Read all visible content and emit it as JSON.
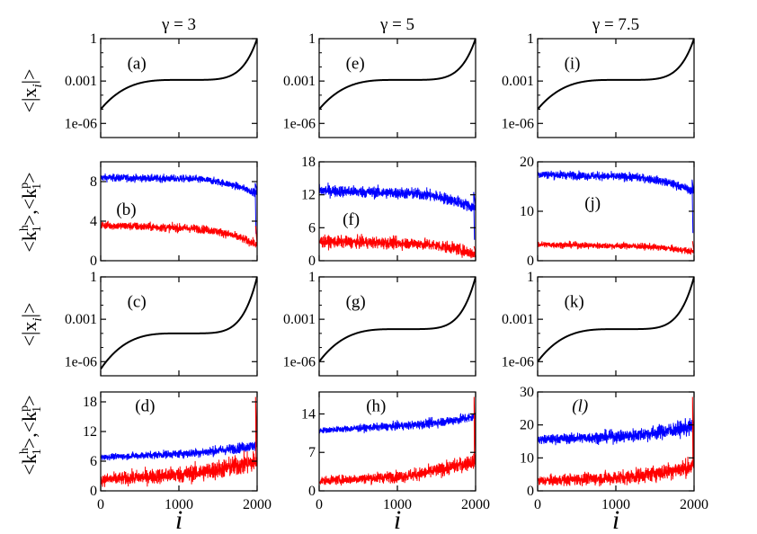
{
  "chart_data": {
    "type": "line",
    "column_titles": [
      "γ = 3",
      "γ = 5",
      "γ = 7.5"
    ],
    "xlabel": "i",
    "ylabel_rows": {
      "abs_x": "<|x_i|>",
      "degree": "<k_1^h>,<k_1^p>"
    },
    "ylabel_parts": {
      "abs_main": "<|x",
      "abs_sub": "i",
      "abs_end": "|>",
      "deg_open": "<k",
      "deg_h": "h",
      "deg_1a": "1",
      "deg_mid": ">,<k",
      "deg_p": "p",
      "deg_1b": "1",
      "deg_close": ">"
    },
    "x_range": [
      0,
      2000
    ],
    "x_ticks": [
      0,
      1000,
      2000
    ],
    "x_tick_labels": [
      "0",
      "1000",
      "2000"
    ],
    "series_colors": {
      "abs_x": "#000000",
      "k_h": "#0000ff",
      "k_p": "#ff0000"
    },
    "panels": [
      {
        "id": "a",
        "label": "(a)",
        "row": 0,
        "col": 0,
        "kind": "abs",
        "yscale": "log",
        "ylim": [
          1e-07,
          1
        ],
        "yticks": [
          1,
          0.001,
          1e-06
        ],
        "ytick_labels": [
          "1",
          "0.001",
          "1e-06"
        ],
        "curve": {
          "start": 1e-05,
          "plateau": 0.0012,
          "end": 1
        }
      },
      {
        "id": "e",
        "label": "(e)",
        "row": 0,
        "col": 1,
        "kind": "abs",
        "yscale": "log",
        "ylim": [
          1e-07,
          1
        ],
        "yticks": [
          1,
          0.001,
          1e-06
        ],
        "ytick_labels": [
          "1",
          "0.001",
          "1e-06"
        ],
        "curve": {
          "start": 1e-05,
          "plateau": 0.0012,
          "end": 1
        }
      },
      {
        "id": "i",
        "label": "(i)",
        "row": 0,
        "col": 2,
        "kind": "abs",
        "yscale": "log",
        "ylim": [
          1e-07,
          1
        ],
        "yticks": [
          1,
          0.001,
          1e-06
        ],
        "ytick_labels": [
          "1",
          "0.001",
          "1e-06"
        ],
        "curve": {
          "start": 1e-05,
          "plateau": 0.0012,
          "end": 1
        }
      },
      {
        "id": "b",
        "label": "(b)",
        "row": 1,
        "col": 0,
        "kind": "deg",
        "ylim": [
          0,
          10
        ],
        "yticks": [
          0,
          4,
          8
        ],
        "ytick_labels": [
          "0",
          "4",
          "8"
        ],
        "blue": {
          "start": 8.4,
          "mid": 8.3,
          "end": 6.8,
          "noise": 0.35
        },
        "red": {
          "start": 3.6,
          "mid": 3.3,
          "end": 1.6,
          "noise": 0.4
        },
        "shape": "decline"
      },
      {
        "id": "f",
        "label": "(f)",
        "row": 1,
        "col": 1,
        "kind": "deg",
        "ylim": [
          0,
          18
        ],
        "yticks": [
          0,
          6,
          12,
          18
        ],
        "ytick_labels": [
          "0",
          "6",
          "12",
          "18"
        ],
        "blue": {
          "start": 12.8,
          "mid": 12.3,
          "end": 9.5,
          "noise": 1.0
        },
        "red": {
          "start": 3.5,
          "mid": 3.2,
          "end": 1.2,
          "noise": 1.0
        },
        "shape": "decline"
      },
      {
        "id": "j",
        "label": "(j)",
        "row": 1,
        "col": 2,
        "kind": "deg",
        "ylim": [
          0,
          20
        ],
        "yticks": [
          0,
          10,
          20
        ],
        "ytick_labels": [
          "0",
          "10",
          "20"
        ],
        "blue": {
          "start": 17.5,
          "mid": 17.0,
          "end": 14.0,
          "noise": 0.8
        },
        "red": {
          "start": 3.3,
          "mid": 3.0,
          "end": 1.8,
          "noise": 0.6
        },
        "shape": "decline"
      },
      {
        "id": "c",
        "label": "(c)",
        "row": 2,
        "col": 0,
        "kind": "abs",
        "yscale": "log",
        "ylim": [
          1e-07,
          1
        ],
        "yticks": [
          1,
          0.001,
          1e-06
        ],
        "ytick_labels": [
          "1",
          "0.001",
          "1e-06"
        ],
        "curve": {
          "start": 3e-07,
          "plateau": 0.0001,
          "end": 1
        }
      },
      {
        "id": "g",
        "label": "(g)",
        "row": 2,
        "col": 1,
        "kind": "abs",
        "yscale": "log",
        "ylim": [
          1e-07,
          1
        ],
        "yticks": [
          1,
          0.001,
          1e-06
        ],
        "ytick_labels": [
          "1",
          "0.001",
          "1e-06"
        ],
        "curve": {
          "start": 1e-06,
          "plateau": 0.0002,
          "end": 1
        }
      },
      {
        "id": "k",
        "label": "(k)",
        "row": 2,
        "col": 2,
        "kind": "abs",
        "yscale": "log",
        "ylim": [
          1e-07,
          1
        ],
        "yticks": [
          1,
          0.001,
          1e-06
        ],
        "ytick_labels": [
          "1",
          "0.001",
          "1e-06"
        ],
        "curve": {
          "start": 1e-06,
          "plateau": 0.0002,
          "end": 1
        }
      },
      {
        "id": "d",
        "label": "(d)",
        "row": 3,
        "col": 0,
        "kind": "deg",
        "ylim": [
          0,
          20
        ],
        "yticks": [
          0,
          6,
          12,
          18
        ],
        "ytick_labels": [
          "0",
          "6",
          "12",
          "18"
        ],
        "blue": {
          "start": 6.8,
          "mid": 7.5,
          "end": 9.2,
          "noise": 0.8
        },
        "red": {
          "start": 2.2,
          "mid": 3.3,
          "end": 6.0,
          "noise": 1.6
        },
        "shape": "rise"
      },
      {
        "id": "h",
        "label": "(h)",
        "row": 3,
        "col": 1,
        "kind": "deg",
        "ylim": [
          0,
          18
        ],
        "yticks": [
          0,
          7,
          14
        ],
        "ytick_labels": [
          "0",
          "7",
          "14"
        ],
        "blue": {
          "start": 11.0,
          "mid": 11.8,
          "end": 13.5,
          "noise": 0.7
        },
        "red": {
          "start": 1.8,
          "mid": 2.6,
          "end": 5.5,
          "noise": 1.0
        },
        "shape": "rise"
      },
      {
        "id": "l",
        "label": "(l)",
        "row": 3,
        "col": 2,
        "kind": "deg",
        "ylim": [
          0,
          30
        ],
        "yticks": [
          0,
          10,
          20,
          30
        ],
        "ytick_labels": [
          "0",
          "10",
          "20",
          "30"
        ],
        "blue": {
          "start": 15.5,
          "mid": 16.5,
          "end": 19.5,
          "noise": 1.8
        },
        "red": {
          "start": 3.0,
          "mid": 4.0,
          "end": 7.5,
          "noise": 2.0
        },
        "shape": "rise"
      }
    ]
  }
}
